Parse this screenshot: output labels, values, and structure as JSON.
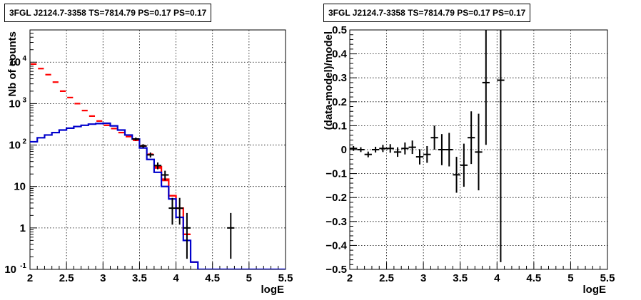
{
  "chart_data": [
    {
      "type": "line",
      "title": "3FGL J2124.7-3358 TS=7814.79 PS=0.17 PS=0.17",
      "xlabel": "logE",
      "ylabel": "Nb of counts",
      "xlim": [
        2,
        5.5
      ],
      "ylim": [
        0.1,
        60000
      ],
      "y_scale": "log",
      "grid": true,
      "x_ticks": [
        "2",
        "2.5",
        "3",
        "3.5",
        "4",
        "4.5",
        "5",
        "5.5"
      ],
      "y_ticks": [
        {
          "value": 0.1,
          "label": "10",
          "exp": "-1"
        },
        {
          "value": 1,
          "label": "1",
          "exp": ""
        },
        {
          "value": 10,
          "label": "10",
          "exp": ""
        },
        {
          "value": 100,
          "label": "10",
          "exp": "2"
        },
        {
          "value": 1000,
          "label": "10",
          "exp": "3"
        },
        {
          "value": 10000,
          "label": "10",
          "exp": "4"
        }
      ],
      "bin_width": 0.1,
      "series": [
        {
          "color": "#ff0000",
          "style": "markers",
          "x": [
            2.05,
            2.15,
            2.25,
            2.35,
            2.45,
            2.55,
            2.65,
            2.75,
            2.85,
            2.95,
            3.05,
            3.15,
            3.25,
            3.35,
            3.45,
            3.55,
            3.65,
            3.75,
            3.85,
            3.95,
            4.05,
            4.15,
            4.25
          ],
          "y": [
            9000,
            7000,
            5000,
            3300,
            2000,
            1400,
            1000,
            680,
            500,
            380,
            300,
            250,
            200,
            160,
            130,
            95,
            60,
            28,
            14,
            6,
            3,
            0.7,
            0.15
          ]
        },
        {
          "color": "#ff0000",
          "style": "steps",
          "x": [
            3.75,
            3.85,
            3.95,
            4.05,
            4.15
          ],
          "y": [
            30,
            15,
            6,
            3,
            0.7
          ]
        },
        {
          "color": "#0000cc",
          "style": "steps",
          "x": [
            2.05,
            2.15,
            2.25,
            2.35,
            2.45,
            2.55,
            2.65,
            2.75,
            2.85,
            2.95,
            3.05,
            3.15,
            3.25,
            3.35,
            3.45,
            3.55,
            3.65,
            3.75,
            3.85,
            3.95,
            4.05,
            4.15,
            4.25,
            4.35,
            4.45,
            4.55,
            4.65,
            4.75,
            4.85,
            4.95,
            5.05,
            5.15,
            5.25,
            5.35,
            5.45
          ],
          "y": [
            120,
            150,
            175,
            200,
            230,
            255,
            280,
            300,
            320,
            330,
            335,
            290,
            230,
            175,
            140,
            85,
            45,
            22,
            10,
            5,
            1.8,
            0.5,
            0.15,
            0.1,
            0.1,
            0.1,
            0.1,
            0.1,
            0.1,
            0.1,
            0.1,
            0.1,
            0.1,
            0.1,
            0.1
          ]
        },
        {
          "color": "#000000",
          "style": "errorbars",
          "x": [
            3.45,
            3.55,
            3.65,
            3.75,
            3.85,
            3.95,
            4.05,
            4.15,
            4.75
          ],
          "y": [
            140,
            95,
            58,
            32,
            19,
            3,
            3,
            1,
            1
          ],
          "yerr_low": [
            12,
            10,
            8,
            6,
            5,
            1.8,
            1.8,
            0.82,
            0.82
          ],
          "yerr_high": [
            12,
            10,
            8,
            6,
            5,
            2.3,
            2.3,
            1.3,
            1.3
          ]
        }
      ]
    },
    {
      "type": "scatter",
      "title": "3FGL J2124.7-3358 TS=7814.79 PS=0.17 PS=0.17",
      "xlabel": "logE",
      "ylabel": "(data-model)/model",
      "xlim": [
        2,
        5.5
      ],
      "ylim": [
        -0.5,
        0.5
      ],
      "grid": true,
      "x_ticks": [
        "2",
        "2.5",
        "3",
        "3.5",
        "4",
        "4.5",
        "5",
        "5.5"
      ],
      "y_ticks": [
        "−0.5",
        "−0.4",
        "−0.3",
        "−0.2",
        "−0.1",
        "0",
        "0.1",
        "0.2",
        "0.3",
        "0.4",
        "0.5"
      ],
      "bin_width": 0.1,
      "series": [
        {
          "color": "#000000",
          "style": "errorbars",
          "x": [
            2.05,
            2.15,
            2.25,
            2.35,
            2.45,
            2.55,
            2.65,
            2.75,
            2.85,
            2.95,
            3.05,
            3.15,
            3.25,
            3.35,
            3.45,
            3.55,
            3.65,
            3.75,
            3.85,
            4.05
          ],
          "y": [
            0.005,
            0.0,
            -0.02,
            0.0,
            0.005,
            0.005,
            -0.01,
            0.005,
            0.01,
            -0.03,
            -0.02,
            0.05,
            0.0,
            0.0,
            -0.105,
            -0.065,
            0.05,
            -0.01,
            0.28,
            0.29
          ],
          "yerr": [
            0.01,
            0.01,
            0.012,
            0.012,
            0.015,
            0.018,
            0.02,
            0.025,
            0.028,
            0.032,
            0.035,
            0.05,
            0.065,
            0.07,
            0.075,
            0.09,
            0.11,
            0.16,
            0.26,
            0.76
          ]
        }
      ]
    }
  ]
}
